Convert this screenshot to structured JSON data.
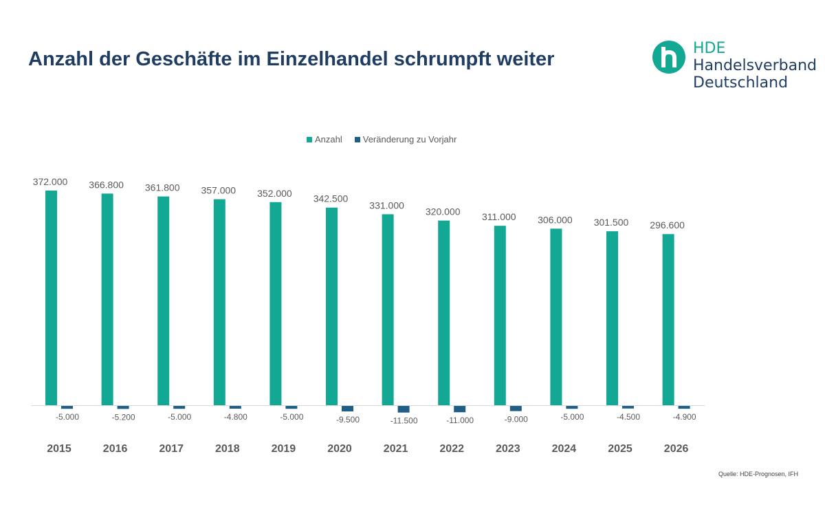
{
  "title": "Anzahl der Geschäfte im Einzelhandel schrumpft weiter",
  "logo": {
    "line1": "HDE",
    "line2": "Handelsverband",
    "line3": "Deutschland"
  },
  "source": "Quelle: HDE-Prognosen, IFH",
  "chart_data": {
    "type": "bar",
    "categories": [
      "2015",
      "2016",
      "2017",
      "2018",
      "2019",
      "2020",
      "2021",
      "2022",
      "2023",
      "2024",
      "2025",
      "2026"
    ],
    "series": [
      {
        "name": "Anzahl",
        "color": "#12a893",
        "values": [
          372000,
          366800,
          361800,
          357000,
          352000,
          342500,
          331000,
          320000,
          311000,
          306000,
          301500,
          296600
        ],
        "labels": [
          "372.000",
          "366.800",
          "361.800",
          "357.000",
          "352.000",
          "342.500",
          "331.000",
          "320.000",
          "311.000",
          "306.000",
          "301.500",
          "296.600"
        ]
      },
      {
        "name": "Veränderung zu Vorjahr",
        "color": "#1f5f86",
        "values": [
          -5000,
          -5200,
          -5000,
          -4800,
          -5000,
          -9500,
          -11500,
          -11000,
          -9000,
          -5000,
          -4500,
          -4900
        ],
        "labels": [
          "-5.000",
          "-5.200",
          "-5.000",
          "-4.800",
          "-5.000",
          "-9.500",
          "-11.500",
          "-11.000",
          "-9.000",
          "-5.000",
          "-4.500",
          "-4.900"
        ]
      }
    ],
    "legend_position": "top",
    "grid": false
  }
}
